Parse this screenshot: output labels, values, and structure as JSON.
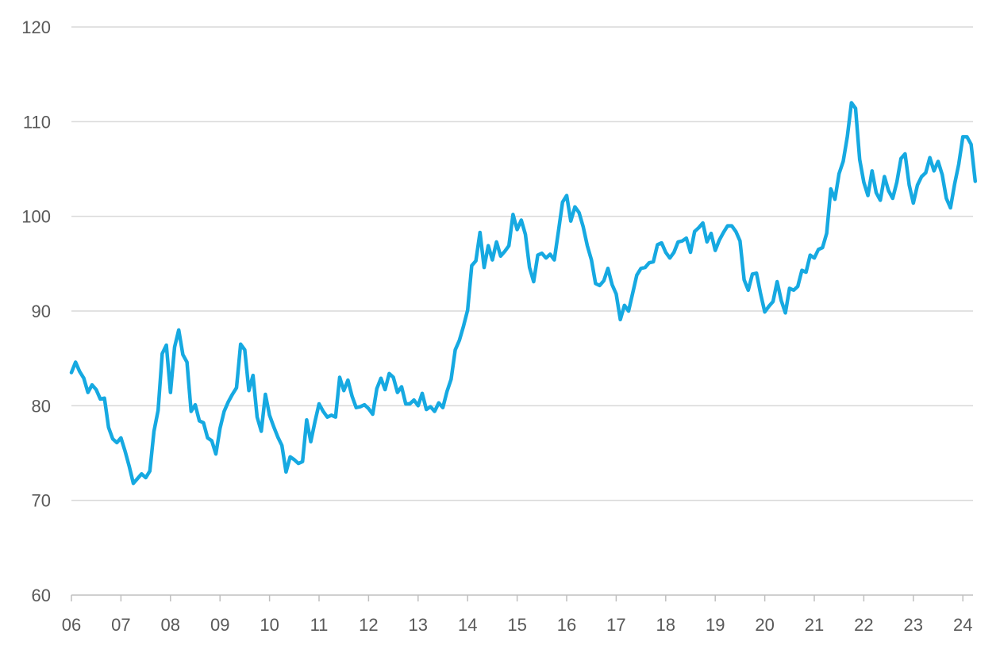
{
  "chart_data": {
    "type": "line",
    "title": "",
    "xlabel": "",
    "ylabel": "",
    "x_tick_labels": [
      "06",
      "07",
      "08",
      "09",
      "10",
      "11",
      "12",
      "13",
      "14",
      "15",
      "16",
      "17",
      "18",
      "19",
      "20",
      "21",
      "22",
      "23",
      "24"
    ],
    "y_tick_labels": [
      "60",
      "70",
      "80",
      "90",
      "100",
      "110",
      "120"
    ],
    "ylim": [
      60,
      120
    ],
    "grid": true,
    "legend": "none",
    "color": "#16A9E1",
    "series": [
      {
        "x_start": "2006-01",
        "frequency": "monthly",
        "values": [
          83.5,
          84.6,
          83.6,
          82.9,
          81.4,
          82.2,
          81.7,
          80.7,
          80.8,
          77.7,
          76.5,
          76.1,
          76.6,
          75.2,
          73.6,
          71.8,
          72.3,
          72.8,
          72.4,
          73.1,
          77.3,
          79.5,
          85.5,
          86.4,
          81.4,
          86.2,
          88.0,
          85.4,
          84.6,
          79.4,
          80.1,
          78.4,
          78.2,
          76.6,
          76.3,
          74.9,
          77.6,
          79.4,
          80.4,
          81.2,
          81.9,
          86.5,
          85.9,
          81.6,
          83.2,
          78.8,
          77.3,
          81.2,
          79.0,
          77.8,
          76.7,
          75.8,
          73.0,
          74.6,
          74.3,
          73.9,
          74.1,
          78.5,
          76.2,
          78.3,
          80.2,
          79.4,
          78.8,
          79.0,
          78.8,
          83.0,
          81.6,
          82.7,
          81.0,
          79.8,
          79.9,
          80.1,
          79.7,
          79.1,
          81.8,
          82.9,
          81.7,
          83.4,
          83.0,
          81.4,
          82.0,
          80.2,
          80.2,
          80.6,
          80.0,
          81.3,
          79.6,
          79.9,
          79.4,
          80.3,
          79.8,
          81.5,
          82.8,
          85.9,
          86.9,
          88.4,
          90.1,
          94.8,
          95.3,
          98.3,
          94.6,
          96.9,
          95.4,
          97.3,
          95.8,
          96.3,
          96.9,
          100.2,
          98.6,
          99.6,
          98.1,
          94.6,
          93.1,
          95.9,
          96.1,
          95.6,
          96.0,
          95.4,
          98.4,
          101.5,
          102.2,
          99.5,
          101.0,
          100.4,
          98.9,
          96.9,
          95.4,
          92.9,
          92.7,
          93.2,
          94.5,
          92.8,
          91.8,
          89.1,
          90.6,
          90.0,
          91.9,
          93.8,
          94.5,
          94.6,
          95.1,
          95.2,
          97.0,
          97.2,
          96.2,
          95.6,
          96.2,
          97.3,
          97.4,
          97.7,
          96.2,
          98.4,
          98.8,
          99.3,
          97.3,
          98.2,
          96.4,
          97.5,
          98.3,
          99.0,
          99.0,
          98.4,
          97.4,
          93.3,
          92.2,
          93.9,
          94.0,
          91.8,
          89.9,
          90.5,
          91.0,
          93.1,
          91.1,
          89.8,
          92.4,
          92.2,
          92.6,
          94.3,
          94.1,
          95.9,
          95.6,
          96.5,
          96.7,
          98.2,
          102.9,
          101.8,
          104.5,
          105.8,
          108.4,
          112.0,
          111.4,
          106.0,
          103.6,
          102.2,
          104.8,
          102.5,
          101.7,
          104.2,
          102.7,
          101.9,
          103.6,
          106.1,
          106.6,
          103.3,
          101.4,
          103.3,
          104.2,
          104.6,
          106.2,
          104.8,
          105.8,
          104.4,
          101.9,
          100.9,
          103.4,
          105.5,
          108.4,
          108.4,
          107.6,
          103.7
        ]
      }
    ]
  }
}
